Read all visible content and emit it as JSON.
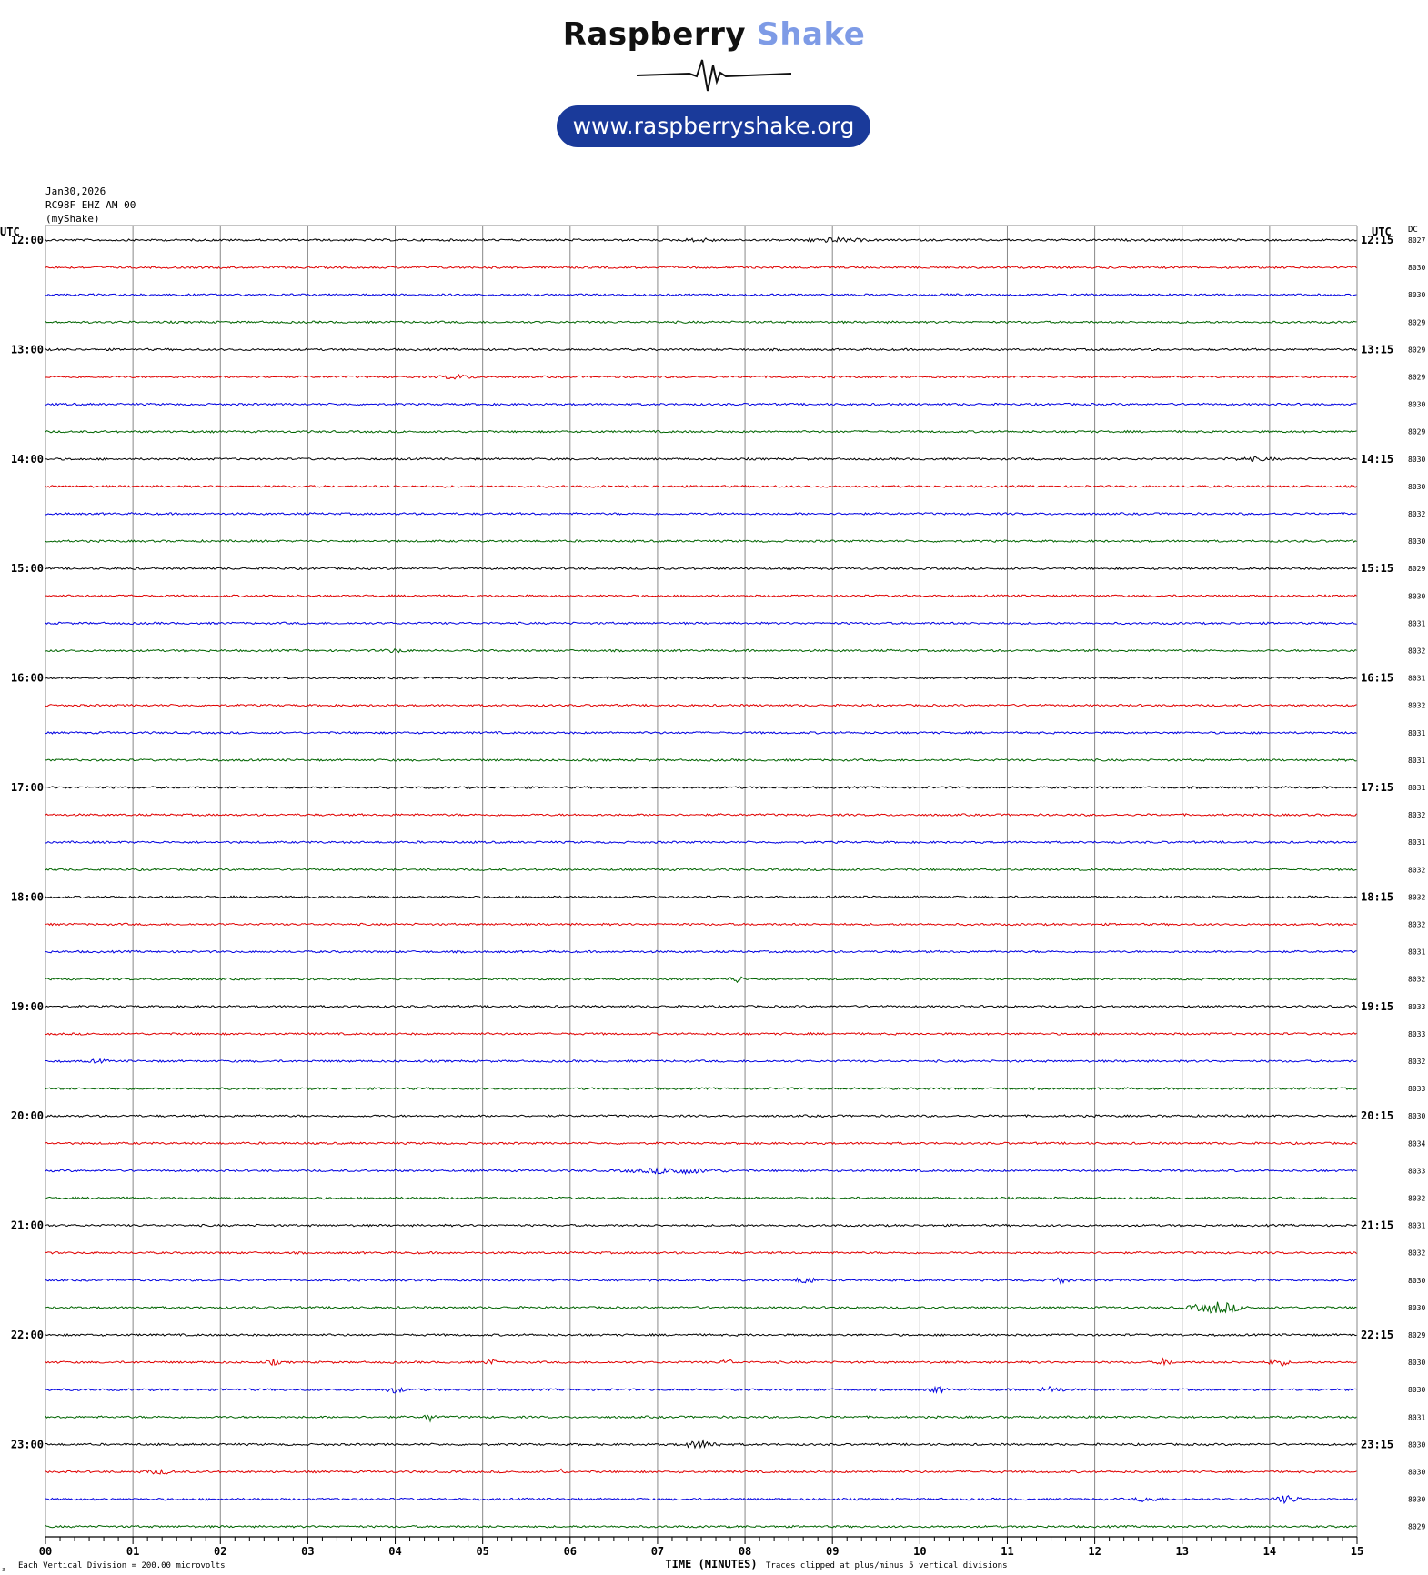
{
  "header": {
    "brand_name": "Raspberry",
    "brand_accent": "Shake",
    "url": "www.raspberryshake.org",
    "date": "Jan30,2026",
    "station": "RC98F EHZ AM 00",
    "source": "(myShake)"
  },
  "axis": {
    "left_unit": "UTC",
    "right_unit": "UTC",
    "dc_label": "DC",
    "xlabel": "TIME (MINUTES)",
    "footer_left": "Each Vertical Division =  200.00 microvolts",
    "footer_right": "Traces clipped at plus/minus 5 vertical divisions",
    "corner_mark": "a"
  },
  "chart_data": {
    "type": "line",
    "title": "",
    "xlabel": "TIME (MINUTES)",
    "xlim": [
      0,
      15
    ],
    "x_ticks": [
      "00",
      "01",
      "02",
      "03",
      "04",
      "05",
      "06",
      "07",
      "08",
      "09",
      "10",
      "11",
      "12",
      "13",
      "14",
      "15"
    ],
    "trace_colors": [
      "#000000",
      "#e00000",
      "#0000e0",
      "#006400"
    ],
    "left_hour_labels": [
      "12:00",
      "13:00",
      "14:00",
      "15:00",
      "16:00",
      "17:00",
      "18:00",
      "19:00",
      "20:00",
      "21:00",
      "22:00",
      "23:00"
    ],
    "right_hour_labels": [
      "12:15",
      "13:15",
      "14:15",
      "15:15",
      "16:15",
      "17:15",
      "18:15",
      "19:15",
      "20:15",
      "21:15",
      "22:15",
      "23:15"
    ],
    "dc_offsets": [
      "8027",
      "8030",
      "8030",
      "8029",
      "8029",
      "8029",
      "8030",
      "8029",
      "8030",
      "8030",
      "8032",
      "8030",
      "8029",
      "8030",
      "8031",
      "8032",
      "8031",
      "8032",
      "8031",
      "8031",
      "8031",
      "8032",
      "8031",
      "8032",
      "8032",
      "8032",
      "8031",
      "8032",
      "8033",
      "8033",
      "8032",
      "8033",
      "8030",
      "8034",
      "8033",
      "8032",
      "8031",
      "8032",
      "8030",
      "8030",
      "8029",
      "8030",
      "8030",
      "8031",
      "8030",
      "8030",
      "8030",
      "8029"
    ],
    "events": [
      {
        "trace": 0,
        "minute": 9.0,
        "width": 1.0,
        "amp": 2.0
      },
      {
        "trace": 0,
        "minute": 7.5,
        "width": 0.6,
        "amp": 1.5
      },
      {
        "trace": 5,
        "minute": 4.7,
        "width": 0.5,
        "amp": 2.0
      },
      {
        "trace": 8,
        "minute": 13.8,
        "width": 0.8,
        "amp": 1.5
      },
      {
        "trace": 15,
        "minute": 4.0,
        "width": 0.4,
        "amp": 1.5
      },
      {
        "trace": 27,
        "minute": 7.9,
        "width": 0.2,
        "amp": 4.0
      },
      {
        "trace": 30,
        "minute": 0.6,
        "width": 0.3,
        "amp": 1.5
      },
      {
        "trace": 34,
        "minute": 7.2,
        "width": 1.4,
        "amp": 3.0
      },
      {
        "trace": 38,
        "minute": 8.7,
        "width": 0.3,
        "amp": 4.0
      },
      {
        "trace": 38,
        "minute": 11.6,
        "width": 0.3,
        "amp": 3.0
      },
      {
        "trace": 39,
        "minute": 13.4,
        "width": 0.8,
        "amp": 6.0
      },
      {
        "trace": 41,
        "minute": 2.6,
        "width": 0.2,
        "amp": 3.0
      },
      {
        "trace": 41,
        "minute": 5.1,
        "width": 0.2,
        "amp": 3.0
      },
      {
        "trace": 41,
        "minute": 7.8,
        "width": 0.2,
        "amp": 3.0
      },
      {
        "trace": 41,
        "minute": 12.8,
        "width": 0.2,
        "amp": 4.0
      },
      {
        "trace": 41,
        "minute": 14.1,
        "width": 0.3,
        "amp": 4.0
      },
      {
        "trace": 42,
        "minute": 4.0,
        "width": 0.3,
        "amp": 3.0
      },
      {
        "trace": 42,
        "minute": 10.2,
        "width": 0.3,
        "amp": 3.0
      },
      {
        "trace": 42,
        "minute": 11.5,
        "width": 0.4,
        "amp": 3.0
      },
      {
        "trace": 43,
        "minute": 4.4,
        "width": 0.15,
        "amp": 6.0
      },
      {
        "trace": 44,
        "minute": 7.5,
        "width": 0.6,
        "amp": 4.0
      },
      {
        "trace": 45,
        "minute": 1.3,
        "width": 0.5,
        "amp": 2.0
      },
      {
        "trace": 45,
        "minute": 5.9,
        "width": 0.1,
        "amp": 3.0
      },
      {
        "trace": 46,
        "minute": 12.6,
        "width": 0.4,
        "amp": 2.5
      },
      {
        "trace": 46,
        "minute": 14.2,
        "width": 0.4,
        "amp": 4.0
      }
    ]
  }
}
